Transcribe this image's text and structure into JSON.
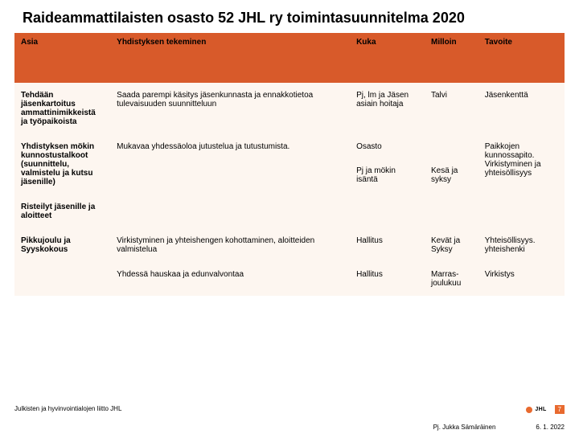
{
  "title": "Raideammattilaisten osasto 52 JHL ry toimintasuunnitelma 2020",
  "table": {
    "headers": {
      "asia": "Asia",
      "tekeminen": "Yhdistyksen tekeminen",
      "kuka": "Kuka",
      "milloin": "Milloin",
      "tavoite": "Tavoite"
    },
    "rows": {
      "r0": {
        "asia": "Tehdään jäsenkartoitus ammattinimikkeistä ja työpaikoista",
        "tekeminen": "Saada parempi käsitys jäsenkunnasta ja ennakkotietoa tulevaisuuden suunnitteluun",
        "kuka": "Pj, lm ja Jäsen asiain hoitaja",
        "milloin": "Talvi",
        "tavoite": "Jäsenkenttä"
      },
      "r1a": {
        "asia": "Yhdistyksen mökin kunnostustalkoot (suunnittelu, valmistelu ja kutsu jäsenille)",
        "tekeminen": "Mukavaa yhdessäoloa jutustelua ja tutustumista.",
        "kuka": "Osasto",
        "milloin": ""
      },
      "r1b": {
        "kuka": "Pj ja mökin isäntä",
        "milloin": "Kesä ja syksy",
        "tavoite": "Paikkojen kunnossapito. Virkistyminen ja yhteisöllisyys"
      },
      "r2": {
        "asia": "Risteilyt jäsenille ja aloitteet"
      },
      "r3": {
        "asia": "Pikkujoulu ja Syyskokous",
        "tekeminen": "Virkistyminen ja yhteishengen kohottaminen, aloitteiden valmistelua",
        "kuka": "Hallitus",
        "milloin": "Kevät ja Syksy",
        "tavoite": "Yhteisöllisyys. yhteishenki"
      },
      "r4": {
        "tekeminen": "Yhdessä hauskaa ja edunvalvontaa",
        "kuka": "Hallitus",
        "milloin": "Marras-joulukuu",
        "tavoite": "Virkistys"
      }
    }
  },
  "footer": {
    "org": "Julkisten ja hyvinvointialojen liitto JHL",
    "logo": "JHL",
    "page": "7",
    "author": "Pj. Jukka Sämäräinen",
    "date": "6. 1. 2022"
  },
  "style": {
    "header_bg": "#d85a2a",
    "body_bg": "#fdf6f0",
    "accent": "#e86a2f"
  }
}
